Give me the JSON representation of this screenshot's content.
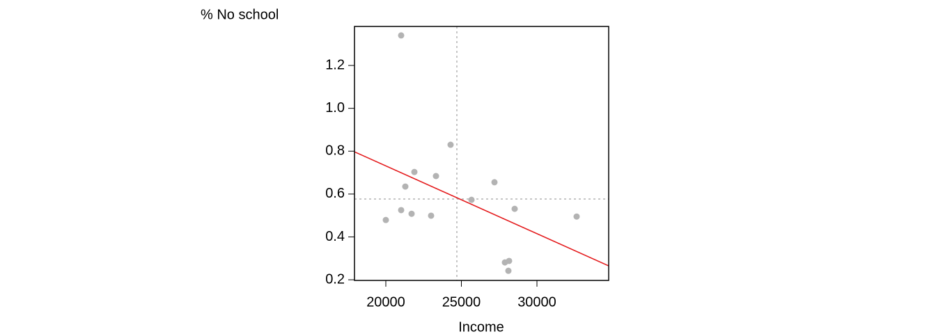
{
  "chart_data": {
    "type": "scatter",
    "x_label": "Income",
    "y_label": "% No school",
    "series": [
      {
        "color": "#b3b3b3",
        "x": [
          21014,
          24285,
          21889,
          23318,
          27189,
          21290,
          25668,
          21014,
          28525,
          21705,
          22995,
          32626,
          20000,
          28156,
          27880,
          28110
        ],
        "values": [
          1.34,
          0.83,
          0.703,
          0.684,
          0.655,
          0.635,
          0.573,
          0.525,
          0.531,
          0.508,
          0.499,
          0.495,
          0.479,
          0.288,
          0.281,
          0.242
        ]
      }
    ],
    "fit_line": {
      "color": "#e41a1c",
      "x": [
        17926,
        34746
      ],
      "values": [
        0.797,
        0.265
      ]
    },
    "mean_lines": {
      "color": "#b3b3b3",
      "x": 24700,
      "y": 0.577
    },
    "xlim": [
      17926,
      34746
    ],
    "xticks": [
      20000,
      25000,
      30000
    ],
    "ylim": [
      0.197,
      1.382
    ],
    "yticks": [
      0.2,
      0.4,
      0.6,
      0.8,
      {
        "value": 1.0,
        "label": "1.0"
      },
      1.2
    ]
  }
}
